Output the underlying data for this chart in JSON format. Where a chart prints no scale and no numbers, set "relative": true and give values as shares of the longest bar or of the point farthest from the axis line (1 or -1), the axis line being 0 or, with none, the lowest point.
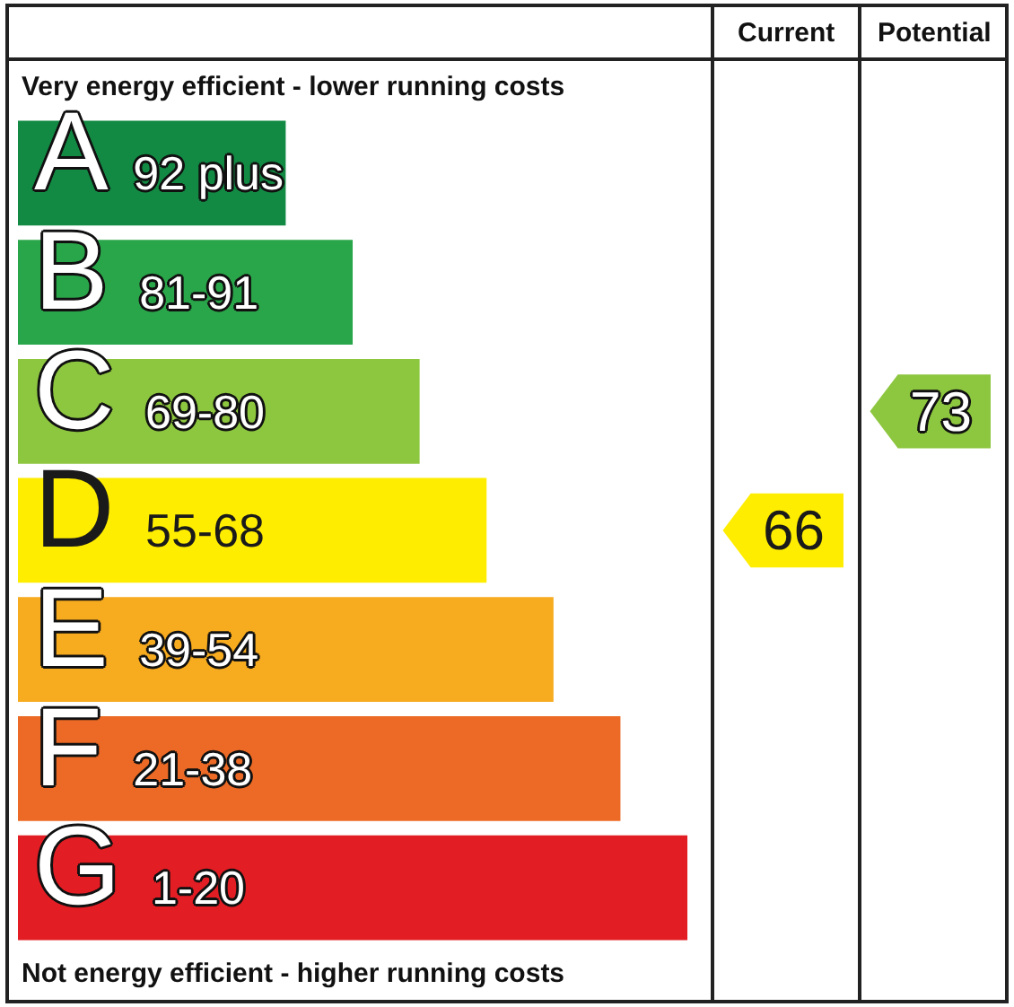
{
  "chart_data": [
    {
      "type": "bar",
      "orientation": "horizontal",
      "relative": true,
      "categories": [
        "A 92 plus",
        "B 81-91",
        "C 69-80",
        "D 55-68",
        "E 39-54",
        "F 21-38",
        "G 1-20"
      ],
      "values": [
        0.4,
        0.5,
        0.6,
        0.7,
        0.8,
        0.9,
        1.0
      ],
      "colors": [
        "#128a43",
        "#2aa64a",
        "#8dc63f",
        "#ffed00",
        "#f7ab1f",
        "#ec6a25",
        "#e31d24"
      ],
      "annotations": [
        "Very energy efficient - lower running costs",
        "Not energy efficient - higher running costs"
      ]
    },
    {
      "type": "other",
      "title": "Current",
      "values": [
        null,
        null,
        null,
        66,
        null,
        null,
        null
      ],
      "color": "#ffed00",
      "data_labels": true
    },
    {
      "type": "other",
      "title": "Potential",
      "values": [
        null,
        null,
        73,
        null,
        null,
        null,
        null
      ],
      "color": "#8dc63f",
      "data_labels": true
    }
  ]
}
